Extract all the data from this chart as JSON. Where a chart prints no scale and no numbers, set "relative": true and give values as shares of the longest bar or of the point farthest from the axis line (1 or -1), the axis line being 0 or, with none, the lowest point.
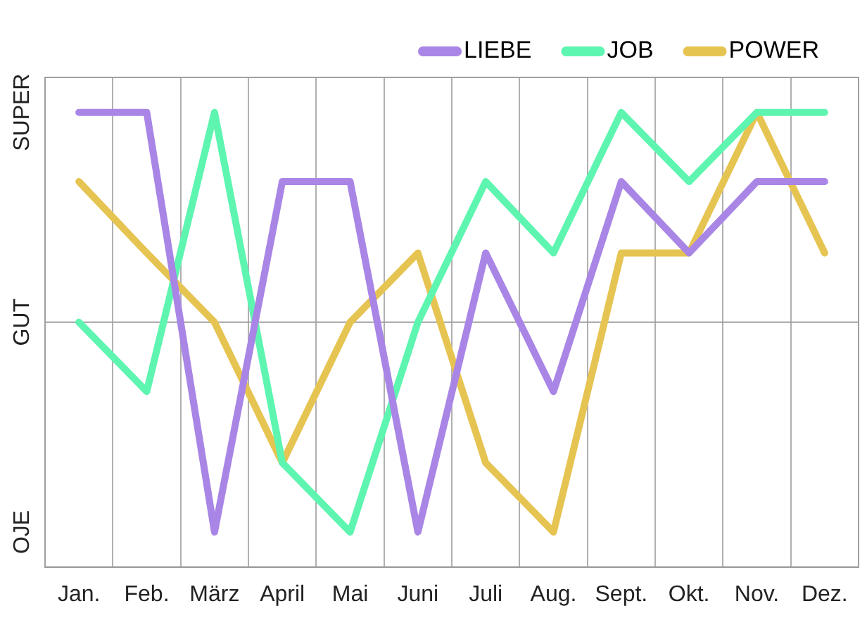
{
  "chart_data": {
    "type": "line",
    "relative": true,
    "categories": [
      "Jan.",
      "Feb.",
      "März",
      "April",
      "Mai",
      "Juni",
      "Juli",
      "Aug.",
      "Sept.",
      "Okt.",
      "Nov.",
      "Dez."
    ],
    "series": [
      {
        "name": "LIEBE",
        "color": "#a985e6",
        "values": [
          1,
          1,
          -1,
          0.67,
          0.67,
          -1,
          0.33,
          -0.33,
          0.67,
          0.33,
          0.67,
          0.67
        ]
      },
      {
        "name": "JOB",
        "color": "#5ef5b0",
        "values": [
          0,
          -0.33,
          1,
          -0.67,
          -1,
          0,
          0.67,
          0.33,
          1,
          0.67,
          1,
          1
        ]
      },
      {
        "name": "POWER",
        "color": "#e6c452",
        "values": [
          0.67,
          0.33,
          0,
          -0.67,
          0,
          0.33,
          -0.67,
          -1,
          0.33,
          0.33,
          1,
          0.33
        ]
      }
    ],
    "annotations": [
      "SUPER",
      "GUT",
      "OJE"
    ],
    "grid": "x",
    "legend": "top right",
    "marker": "none",
    "line_style": "solid"
  }
}
